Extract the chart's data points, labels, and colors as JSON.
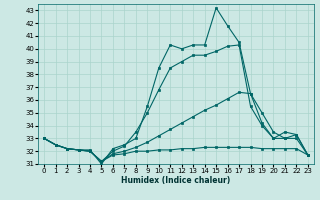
{
  "xlabel": "Humidex (Indice chaleur)",
  "bg_color": "#cce8e4",
  "grid_color": "#aad4cc",
  "line_color": "#006666",
  "xlim": [
    -0.5,
    23.5
  ],
  "ylim": [
    31,
    43.5
  ],
  "yticks": [
    31,
    32,
    33,
    34,
    35,
    36,
    37,
    38,
    39,
    40,
    41,
    42,
    43
  ],
  "xticks": [
    0,
    1,
    2,
    3,
    4,
    5,
    6,
    7,
    8,
    9,
    10,
    11,
    12,
    13,
    14,
    15,
    16,
    17,
    18,
    19,
    20,
    21,
    22,
    23
  ],
  "series": [
    {
      "x": [
        0,
        1,
        2,
        3,
        4,
        5,
        6,
        7,
        8,
        9,
        10,
        11,
        12,
        13,
        14,
        15,
        16,
        17,
        18,
        19,
        20,
        21,
        22,
        23
      ],
      "y": [
        33.0,
        32.5,
        32.2,
        32.1,
        32.1,
        31.0,
        32.2,
        32.5,
        33.0,
        35.5,
        38.5,
        40.3,
        40.0,
        40.3,
        40.3,
        43.2,
        41.8,
        40.5,
        36.5,
        34.2,
        33.0,
        33.5,
        33.3,
        31.7
      ]
    },
    {
      "x": [
        0,
        1,
        2,
        3,
        4,
        5,
        6,
        7,
        8,
        9,
        10,
        11,
        12,
        13,
        14,
        15,
        16,
        17,
        18,
        19,
        20,
        21,
        22,
        23
      ],
      "y": [
        33.0,
        32.5,
        32.2,
        32.1,
        32.0,
        31.2,
        32.0,
        32.4,
        33.5,
        35.0,
        36.8,
        38.5,
        39.0,
        39.5,
        39.5,
        39.8,
        40.2,
        40.3,
        35.5,
        34.0,
        33.0,
        33.0,
        33.3,
        31.7
      ]
    },
    {
      "x": [
        0,
        1,
        2,
        3,
        4,
        5,
        6,
        7,
        8,
        9,
        10,
        11,
        12,
        13,
        14,
        15,
        16,
        17,
        18,
        19,
        20,
        21,
        22,
        23
      ],
      "y": [
        33.0,
        32.5,
        32.2,
        32.1,
        32.0,
        31.2,
        31.8,
        32.0,
        32.3,
        32.7,
        33.2,
        33.7,
        34.2,
        34.7,
        35.2,
        35.6,
        36.1,
        36.6,
        36.5,
        35.0,
        33.5,
        33.0,
        33.0,
        31.7
      ]
    },
    {
      "x": [
        0,
        1,
        2,
        3,
        4,
        5,
        6,
        7,
        8,
        9,
        10,
        11,
        12,
        13,
        14,
        15,
        16,
        17,
        18,
        19,
        20,
        21,
        22,
        23
      ],
      "y": [
        33.0,
        32.5,
        32.2,
        32.1,
        32.0,
        31.2,
        31.7,
        31.8,
        32.0,
        32.0,
        32.1,
        32.1,
        32.2,
        32.2,
        32.3,
        32.3,
        32.3,
        32.3,
        32.3,
        32.2,
        32.2,
        32.2,
        32.2,
        31.7
      ]
    }
  ]
}
